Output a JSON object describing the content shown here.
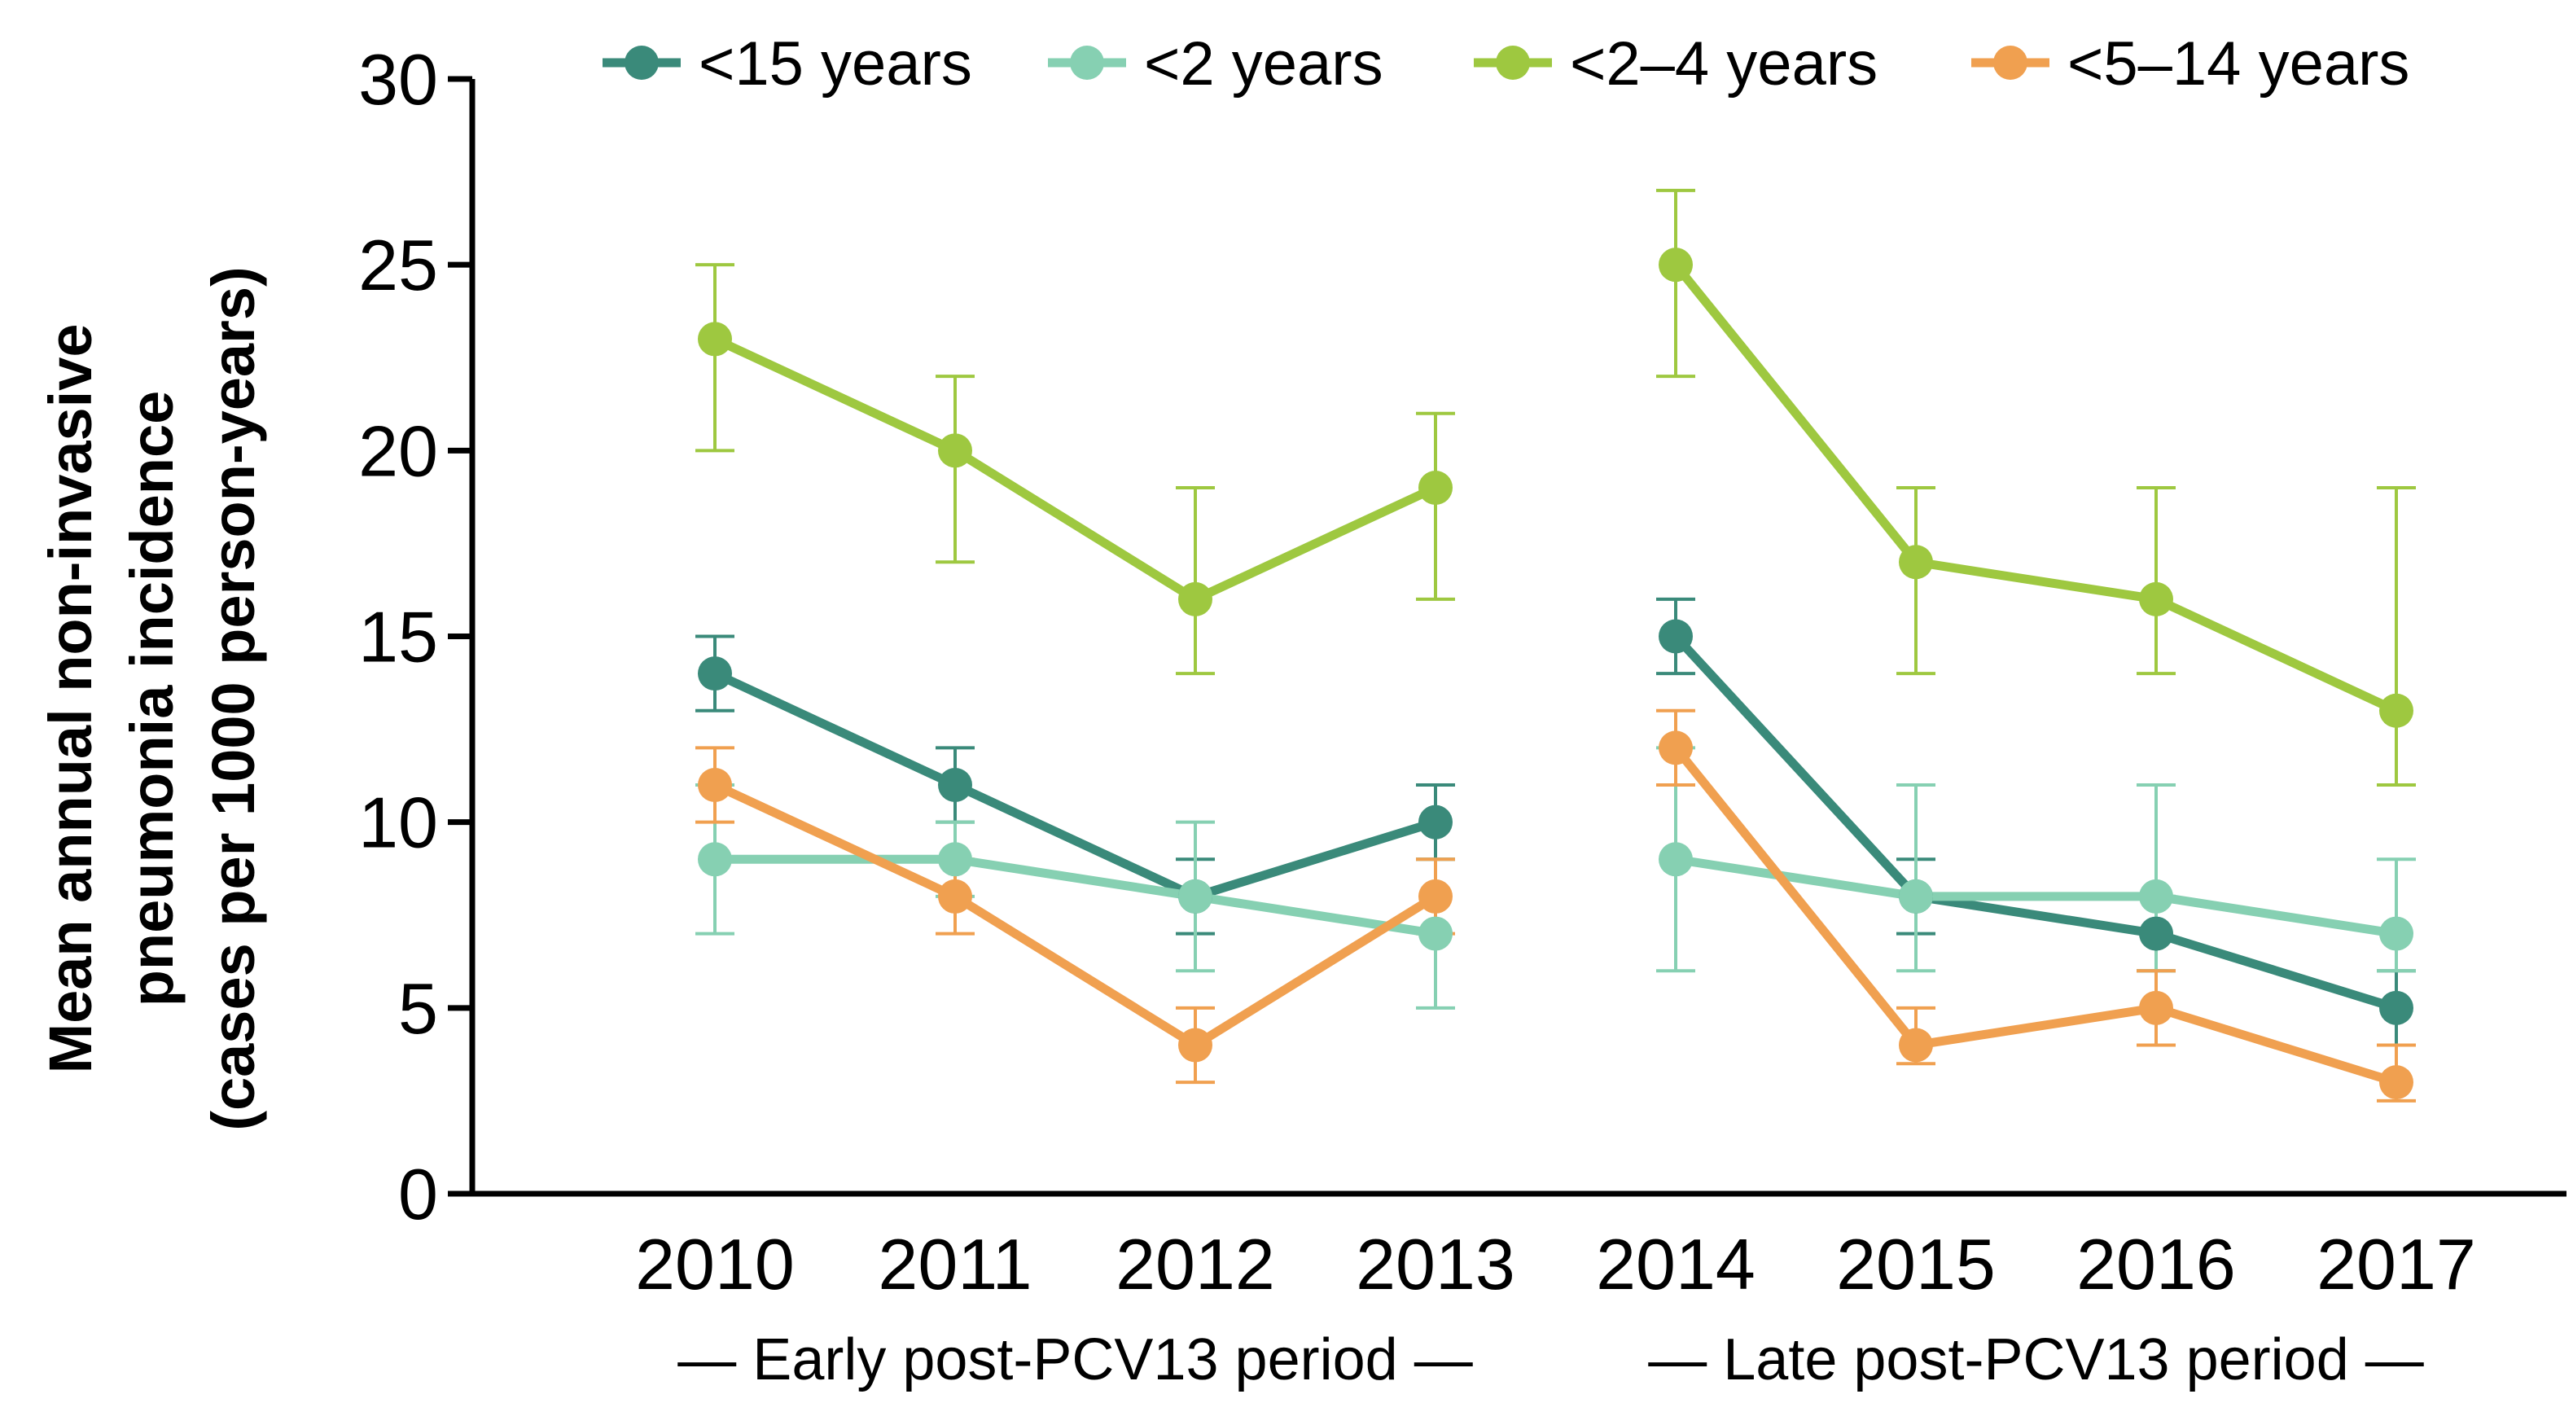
{
  "chart_data": {
    "type": "line",
    "title": "",
    "xlabel": "",
    "ylabel": [
      "Mean annual non-invasive",
      "pneumonia incidence",
      "(cases per 1000 person-years)"
    ],
    "ylim": [
      0,
      30
    ],
    "yticks": [
      0,
      5,
      10,
      15,
      20,
      25,
      30
    ],
    "grid": false,
    "legend_position": "top",
    "categories": [
      "2010",
      "2011",
      "2012",
      "2013",
      "2014",
      "2015",
      "2016",
      "2017"
    ],
    "segments": [
      [
        0,
        3
      ],
      [
        4,
        7
      ]
    ],
    "periods": [
      {
        "label": "— Early post-PCV13 period —",
        "from": 0,
        "to": 3
      },
      {
        "label": "— Late post-PCV13 period —",
        "from": 4,
        "to": 7
      }
    ],
    "series": [
      {
        "name": "<15 years",
        "color": "#3a8a7a",
        "values": [
          14,
          11,
          8,
          10,
          15,
          8,
          7,
          5
        ],
        "lower": [
          13,
          10,
          7,
          9,
          14,
          7,
          6,
          4
        ],
        "upper": [
          15,
          12,
          9,
          11,
          16,
          9,
          8,
          6
        ]
      },
      {
        "name": "<2 years",
        "color": "#86d0b2",
        "values": [
          9,
          9,
          8,
          7,
          9,
          8,
          8,
          7
        ],
        "lower": [
          7,
          8,
          6,
          5,
          6,
          6,
          6,
          6
        ],
        "upper": [
          11,
          10,
          10,
          9,
          12,
          11,
          11,
          9
        ]
      },
      {
        "name": "<2–4 years",
        "color": "#9ec840",
        "values": [
          23,
          20,
          16,
          19,
          25,
          17,
          16,
          13
        ],
        "lower": [
          20,
          17,
          14,
          16,
          22,
          14,
          14,
          11
        ],
        "upper": [
          25,
          22,
          19,
          21,
          27,
          19,
          19,
          19
        ]
      },
      {
        "name": "<5–14 years",
        "color": "#f0a050",
        "values": [
          11,
          8,
          4,
          8,
          12,
          4,
          5,
          3
        ],
        "lower": [
          10,
          7,
          3,
          7,
          11,
          3.5,
          4,
          2.5
        ],
        "upper": [
          12,
          9,
          5,
          9,
          13,
          5,
          6,
          4
        ]
      }
    ]
  }
}
